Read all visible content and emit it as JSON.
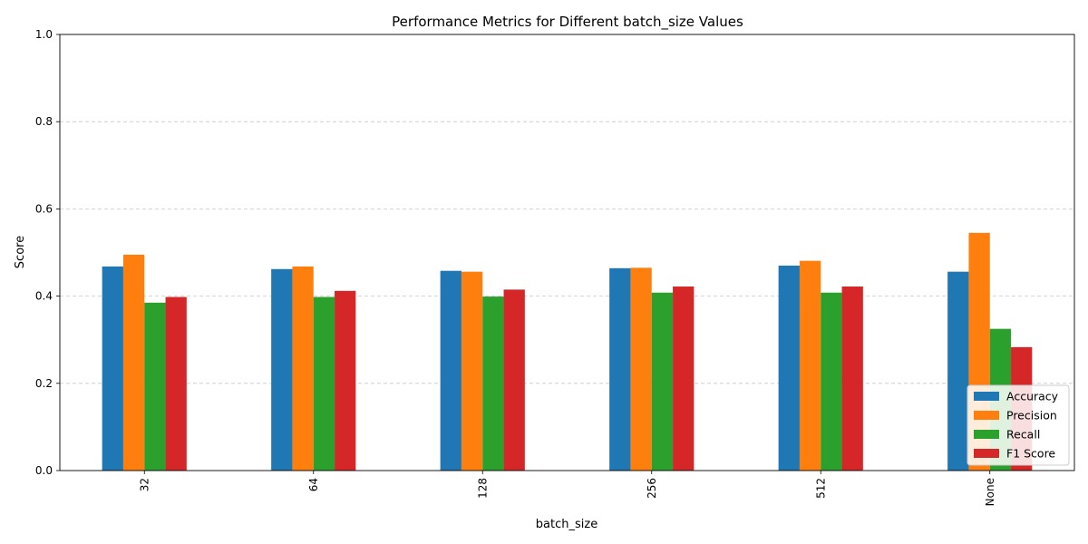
{
  "chart_data": {
    "type": "bar",
    "title": "Performance Metrics for Different batch_size Values",
    "xlabel": "batch_size",
    "ylabel": "Score",
    "ylim": [
      0,
      1.0
    ],
    "yticks": [
      "0.0",
      "0.2",
      "0.4",
      "0.6",
      "0.8",
      "1.0"
    ],
    "grid": "y-dashed",
    "legend_position": "lower-right",
    "categories": [
      "32",
      "64",
      "128",
      "256",
      "512",
      "None"
    ],
    "series": [
      {
        "name": "Accuracy",
        "color": "#1f77b4",
        "values": [
          0.468,
          0.462,
          0.458,
          0.464,
          0.47,
          0.456
        ]
      },
      {
        "name": "Precision",
        "color": "#ff7f0e",
        "values": [
          0.495,
          0.468,
          0.456,
          0.465,
          0.481,
          0.545
        ]
      },
      {
        "name": "Recall",
        "color": "#2ca02c",
        "values": [
          0.385,
          0.398,
          0.399,
          0.408,
          0.408,
          0.325
        ]
      },
      {
        "name": "F1 Score",
        "color": "#d62728",
        "values": [
          0.398,
          0.412,
          0.415,
          0.422,
          0.422,
          0.283
        ]
      }
    ]
  }
}
